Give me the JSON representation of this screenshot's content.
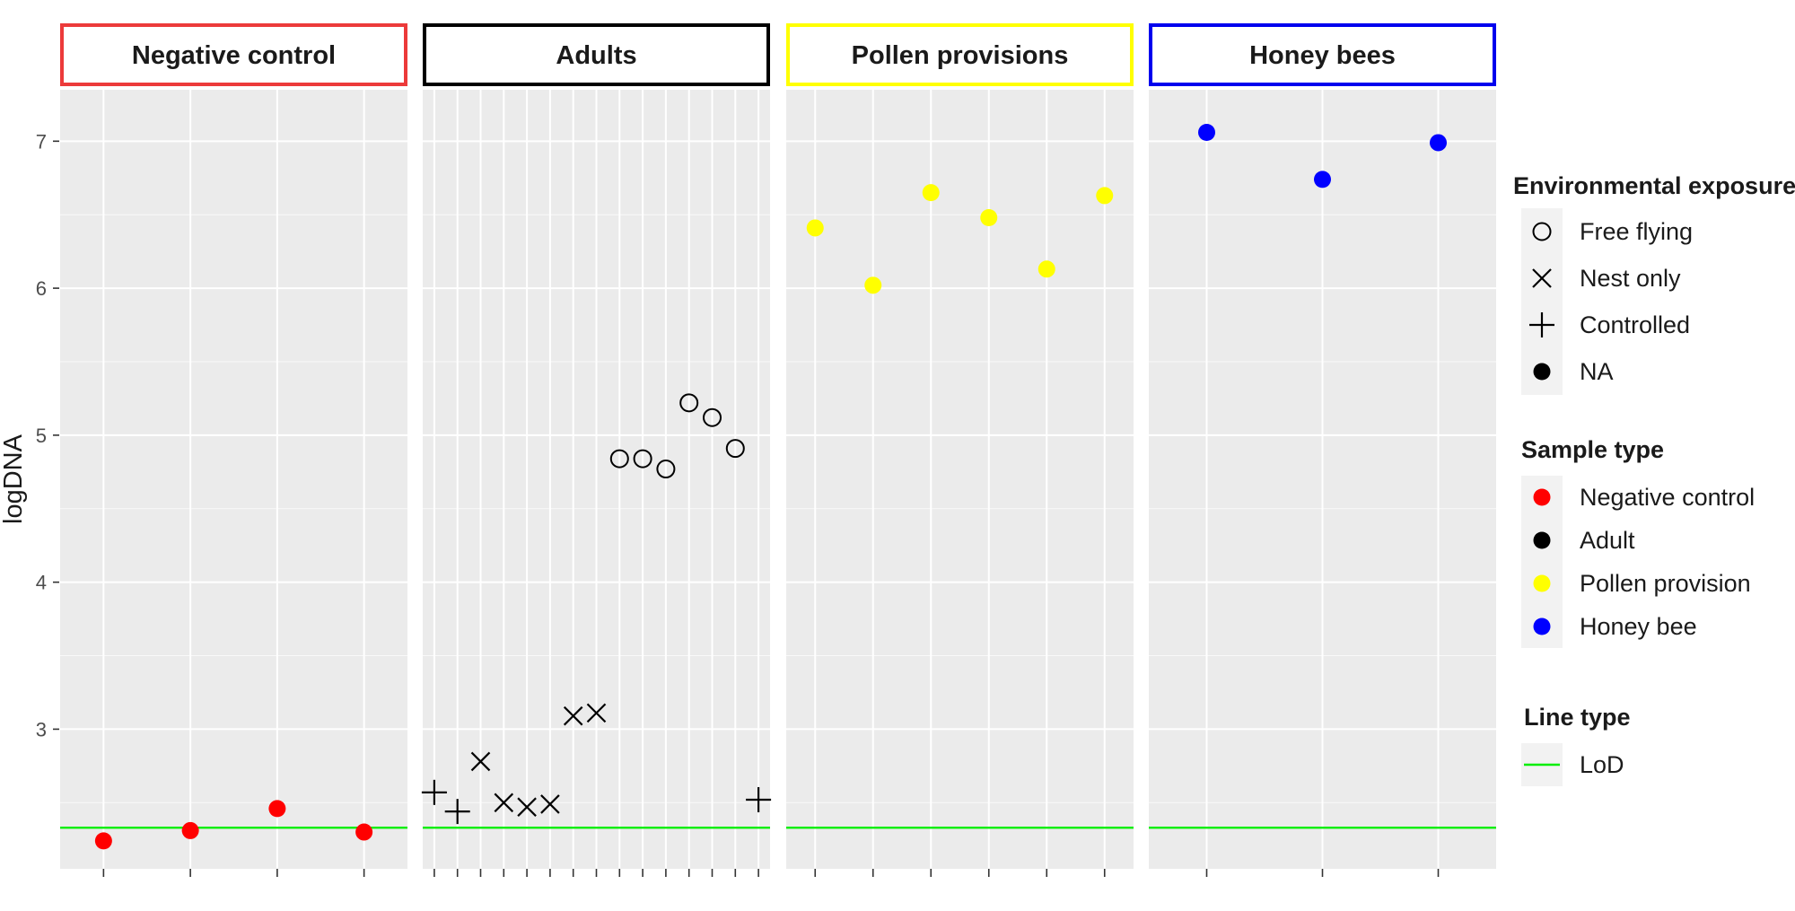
{
  "chart_data": {
    "type": "scatter",
    "ylabel": "logDNA",
    "ylim": [
      2.05,
      7.35
    ],
    "yticks": [
      3,
      4,
      5,
      6,
      7
    ],
    "lod": 2.33,
    "grid": true,
    "legend_position": "right",
    "panels": [
      {
        "title": "Negative control",
        "border_color": "#ec3a3a",
        "n_x": 4,
        "points": [
          {
            "x": 1,
            "y": 2.24,
            "shape": "NA",
            "color": "#ff0000"
          },
          {
            "x": 2,
            "y": 2.31,
            "shape": "NA",
            "color": "#ff0000"
          },
          {
            "x": 3,
            "y": 2.46,
            "shape": "NA",
            "color": "#ff0000"
          },
          {
            "x": 4,
            "y": 2.3,
            "shape": "NA",
            "color": "#ff0000"
          }
        ]
      },
      {
        "title": "Adults",
        "border_color": "#000000",
        "n_x": 15,
        "points": [
          {
            "x": 1,
            "y": 2.57,
            "shape": "Controlled",
            "color": "#000000"
          },
          {
            "x": 2,
            "y": 2.44,
            "shape": "Controlled",
            "color": "#000000"
          },
          {
            "x": 3,
            "y": 2.78,
            "shape": "Nest only",
            "color": "#000000"
          },
          {
            "x": 4,
            "y": 2.5,
            "shape": "Nest only",
            "color": "#000000"
          },
          {
            "x": 5,
            "y": 2.47,
            "shape": "Nest only",
            "color": "#000000"
          },
          {
            "x": 6,
            "y": 2.49,
            "shape": "Nest only",
            "color": "#000000"
          },
          {
            "x": 7,
            "y": 3.09,
            "shape": "Nest only",
            "color": "#000000"
          },
          {
            "x": 8,
            "y": 3.11,
            "shape": "Nest only",
            "color": "#000000"
          },
          {
            "x": 9,
            "y": 4.84,
            "shape": "Free flying",
            "color": "#000000"
          },
          {
            "x": 10,
            "y": 4.84,
            "shape": "Free flying",
            "color": "#000000"
          },
          {
            "x": 11,
            "y": 4.77,
            "shape": "Free flying",
            "color": "#000000"
          },
          {
            "x": 12,
            "y": 5.22,
            "shape": "Free flying",
            "color": "#000000"
          },
          {
            "x": 13,
            "y": 5.12,
            "shape": "Free flying",
            "color": "#000000"
          },
          {
            "x": 14,
            "y": 4.91,
            "shape": "Free flying",
            "color": "#000000"
          },
          {
            "x": 15,
            "y": 2.52,
            "shape": "Controlled",
            "color": "#000000"
          }
        ]
      },
      {
        "title": "Pollen provisions",
        "border_color": "#ffff00",
        "n_x": 6,
        "points": [
          {
            "x": 1,
            "y": 6.41,
            "shape": "NA",
            "color": "#ffff00"
          },
          {
            "x": 2,
            "y": 6.02,
            "shape": "NA",
            "color": "#ffff00"
          },
          {
            "x": 3,
            "y": 6.65,
            "shape": "NA",
            "color": "#ffff00"
          },
          {
            "x": 4,
            "y": 6.48,
            "shape": "NA",
            "color": "#ffff00"
          },
          {
            "x": 5,
            "y": 6.13,
            "shape": "NA",
            "color": "#ffff00"
          },
          {
            "x": 6,
            "y": 6.63,
            "shape": "NA",
            "color": "#ffff00"
          }
        ]
      },
      {
        "title": "Honey bees",
        "border_color": "#0000ee",
        "n_x": 3,
        "points": [
          {
            "x": 1,
            "y": 7.06,
            "shape": "NA",
            "color": "#0000ff"
          },
          {
            "x": 2,
            "y": 6.74,
            "shape": "NA",
            "color": "#0000ff"
          },
          {
            "x": 3,
            "y": 6.99,
            "shape": "NA",
            "color": "#0000ff"
          }
        ]
      }
    ],
    "legends": [
      {
        "title": "Environmental exposure",
        "items": [
          {
            "label": "Free flying",
            "shape": "Free flying",
            "color": "#000000"
          },
          {
            "label": "Nest only",
            "shape": "Nest only",
            "color": "#000000"
          },
          {
            "label": "Controlled",
            "shape": "Controlled",
            "color": "#000000"
          },
          {
            "label": "NA",
            "shape": "NA",
            "color": "#000000"
          }
        ]
      },
      {
        "title": "Sample type",
        "items": [
          {
            "label": "Negative control",
            "shape": "NA",
            "color": "#ff0000"
          },
          {
            "label": "Adult",
            "shape": "NA",
            "color": "#000000"
          },
          {
            "label": "Pollen provision",
            "shape": "NA",
            "color": "#ffff00"
          },
          {
            "label": "Honey bee",
            "shape": "NA",
            "color": "#0000ff"
          }
        ]
      },
      {
        "title": "Line type",
        "items": [
          {
            "label": "LoD",
            "shape": "line",
            "color": "#00ee00"
          }
        ]
      }
    ],
    "colors": {
      "panel_background": "#ebebeb",
      "grid": "#ffffff",
      "lod_line": "#00ee00"
    }
  }
}
